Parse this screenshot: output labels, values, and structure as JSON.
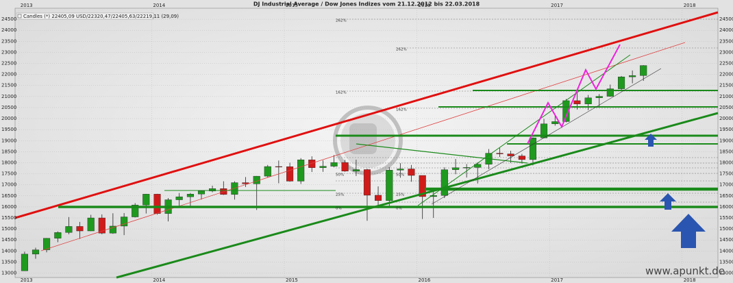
{
  "chart_data": {
    "type": "candlestick",
    "title": "DJ Industrial Average / Dow Jones Indizes vom 21.12.2012 bis 22.03.2018",
    "legend_text": "Candles (*) 22405,09 USD/22320,47/22405,63/22219,11 (29,09)",
    "watermark": "www.apunkt.de",
    "up_color": "#1f9a1f",
    "down_color": "#d01a1a",
    "xlim": [
      2012.97,
      2018.27
    ],
    "xticks": [
      2013,
      2014,
      2015,
      2016,
      2017,
      2018
    ],
    "ylim": [
      12800,
      25000
    ],
    "yticks": [
      13000,
      13500,
      14000,
      14500,
      15000,
      15500,
      16000,
      16500,
      17000,
      17500,
      18000,
      18500,
      19000,
      19500,
      20000,
      20500,
      21000,
      21500,
      22000,
      22500,
      23000,
      23500,
      24000,
      24500
    ],
    "grid": true,
    "annotations": [
      "262%",
      "262%",
      "162%",
      "162%",
      "50%",
      "50%",
      "25%",
      "25%",
      "0%",
      "0%"
    ],
    "x": [
      2013.042,
      2013.125,
      2013.208,
      2013.292,
      2013.375,
      2013.458,
      2013.542,
      2013.625,
      2013.708,
      2013.792,
      2013.875,
      2013.958,
      2014.042,
      2014.125,
      2014.208,
      2014.292,
      2014.375,
      2014.458,
      2014.542,
      2014.625,
      2014.708,
      2014.792,
      2014.875,
      2014.958,
      2015.042,
      2015.125,
      2015.208,
      2015.292,
      2015.375,
      2015.458,
      2015.542,
      2015.625,
      2015.708,
      2015.792,
      2015.875,
      2015.958,
      2016.042,
      2016.125,
      2016.208,
      2016.292,
      2016.375,
      2016.458,
      2016.542,
      2016.625,
      2016.708,
      2016.792,
      2016.875,
      2016.958,
      2017.042,
      2017.125,
      2017.208,
      2017.292,
      2017.375,
      2017.458,
      2017.542,
      2017.625,
      2017.708
    ],
    "open": [
      13104,
      13860,
      14054,
      14578,
      14839,
      15115,
      14910,
      15500,
      14810,
      15130,
      15546,
      16086,
      16577,
      15699,
      16322,
      16458,
      16581,
      16717,
      16827,
      16563,
      17098,
      17043,
      17391,
      17828,
      17823,
      17165,
      18133,
      17776,
      17841,
      18011,
      17620,
      17690,
      16528,
      16285,
      17664,
      17720,
      17425,
      16466,
      16517,
      17685,
      17774,
      17787,
      17930,
      18432,
      18401,
      18308,
      18142,
      19124,
      19763,
      19864,
      20812,
      20663,
      20941,
      21009,
      21350,
      21891,
      21948
    ],
    "high": [
      13970,
      14150,
      14590,
      14890,
      15540,
      15320,
      15640,
      15660,
      15710,
      15720,
      16170,
      16590,
      16590,
      16400,
      16630,
      16630,
      16740,
      16960,
      17160,
      17160,
      17350,
      17400,
      17900,
      18100,
      18000,
      18210,
      18290,
      18110,
      18350,
      18130,
      18140,
      17730,
      16930,
      17800,
      17980,
      17900,
      17410,
      16790,
      17790,
      18170,
      17940,
      18020,
      18620,
      18670,
      18540,
      18400,
      19150,
      19990,
      20130,
      20890,
      21170,
      21070,
      21110,
      21540,
      21930,
      22180,
      22420
    ],
    "low": [
      13100,
      13650,
      13940,
      14400,
      14760,
      14550,
      14900,
      14760,
      14780,
      14720,
      15520,
      15700,
      15650,
      15340,
      16020,
      16020,
      16330,
      16660,
      16540,
      16330,
      16900,
      15860,
      17330,
      17070,
      17140,
      17040,
      17580,
      17590,
      17790,
      17590,
      17400,
      15370,
      15940,
      16010,
      17320,
      17140,
      15450,
      15500,
      16400,
      17480,
      17330,
      17060,
      17710,
      18260,
      17990,
      17960,
      17880,
      19110,
      19680,
      19830,
      20410,
      20380,
      20550,
      20990,
      21280,
      21600,
      21710
    ],
    "close": [
      13860,
      14054,
      14578,
      14839,
      15115,
      14910,
      15500,
      14810,
      15130,
      15546,
      16086,
      16577,
      15699,
      16322,
      16458,
      16581,
      16717,
      16827,
      16563,
      17098,
      17043,
      17391,
      17828,
      17823,
      17165,
      18133,
      17776,
      17841,
      18011,
      17620,
      17690,
      16528,
      16285,
      17664,
      17720,
      17425,
      16466,
      16517,
      17685,
      17774,
      17787,
      17930,
      18432,
      18401,
      18308,
      18142,
      19124,
      19763,
      19864,
      20812,
      20663,
      20941,
      21009,
      21350,
      21891,
      21948,
      22405
    ]
  }
}
